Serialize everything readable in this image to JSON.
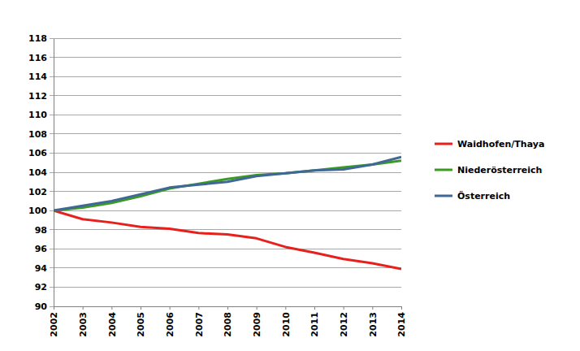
{
  "chart_data": {
    "type": "line",
    "categories": [
      "2002",
      "2003",
      "2004",
      "2005",
      "2006",
      "2007",
      "2008",
      "2009",
      "2010",
      "2011",
      "2012",
      "2013",
      "2014"
    ],
    "series": [
      {
        "name": "Waidhofen/Thaya",
        "color": "#e8201c",
        "values": [
          100,
          99.1,
          98.75,
          98.3,
          98.1,
          97.65,
          97.5,
          97.1,
          96.2,
          95.6,
          94.95,
          94.5,
          93.9
        ]
      },
      {
        "name": "Niederösterreich",
        "color": "#3a9b22",
        "values": [
          100,
          100.3,
          100.8,
          101.5,
          102.3,
          102.8,
          103.3,
          103.7,
          103.9,
          104.2,
          104.5,
          104.8,
          105.2
        ]
      },
      {
        "name": "Österreich",
        "color": "#3f6896",
        "values": [
          100,
          100.5,
          101.0,
          101.7,
          102.4,
          102.7,
          103.0,
          103.6,
          103.9,
          104.2,
          104.3,
          104.8,
          105.6
        ]
      }
    ],
    "ylim": [
      90,
      118
    ],
    "yticks": [
      90,
      92,
      94,
      96,
      98,
      100,
      102,
      104,
      106,
      108,
      110,
      112,
      114,
      116,
      118
    ],
    "grid": true,
    "legend": "right"
  }
}
